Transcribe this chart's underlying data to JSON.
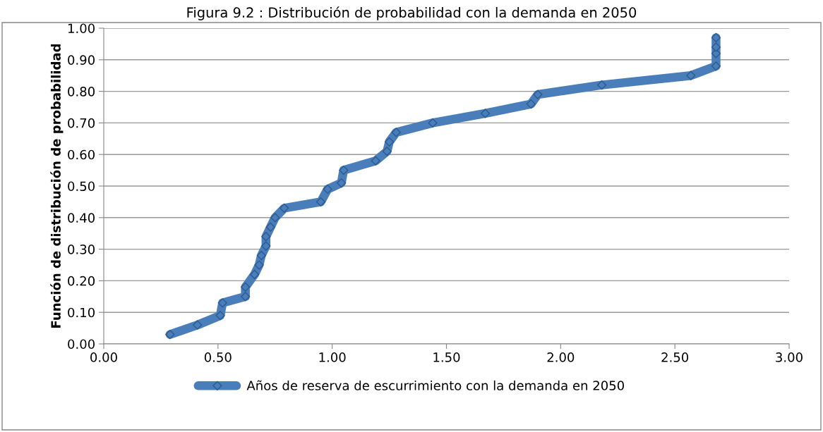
{
  "chart_data": {
    "type": "line",
    "title": "Figura 9.2 : Distribución de probabilidad con la demanda en 2050",
    "ylabel": "Función de distribución de probabilidad",
    "series": [
      {
        "name": "Años de reserva de escurrimiento con la demanda en 2050",
        "color": "#4a7ebb",
        "x": [
          0.29,
          0.41,
          0.51,
          0.52,
          0.62,
          0.62,
          0.66,
          0.68,
          0.69,
          0.71,
          0.71,
          0.73,
          0.75,
          0.79,
          0.95,
          0.98,
          1.04,
          1.05,
          1.19,
          1.24,
          1.25,
          1.28,
          1.44,
          1.67,
          1.87,
          1.9,
          2.18,
          2.57,
          2.68,
          2.68,
          2.68,
          2.68
        ],
        "values": [
          0.03,
          0.06,
          0.09,
          0.13,
          0.15,
          0.18,
          0.22,
          0.25,
          0.28,
          0.31,
          0.34,
          0.37,
          0.4,
          0.43,
          0.45,
          0.49,
          0.51,
          0.55,
          0.58,
          0.61,
          0.64,
          0.67,
          0.7,
          0.73,
          0.76,
          0.79,
          0.82,
          0.85,
          0.88,
          0.92,
          0.94,
          0.97
        ]
      }
    ],
    "xlim": [
      0,
      3
    ],
    "ylim": [
      0,
      1
    ],
    "xticks": [
      {
        "value": 0,
        "label": "0.00"
      },
      {
        "value": 0.5,
        "label": "0.50"
      },
      {
        "value": 1,
        "label": "1.00"
      },
      {
        "value": 1.5,
        "label": "1.50"
      },
      {
        "value": 2,
        "label": "2.00"
      },
      {
        "value": 2.5,
        "label": "2.50"
      },
      {
        "value": 3,
        "label": "3.00"
      }
    ],
    "yticks": [
      {
        "value": 0,
        "label": "0.00"
      },
      {
        "value": 0.1,
        "label": "0.10"
      },
      {
        "value": 0.2,
        "label": "0.20"
      },
      {
        "value": 0.3,
        "label": "0.30"
      },
      {
        "value": 0.4,
        "label": "0.40"
      },
      {
        "value": 0.5,
        "label": "0.50"
      },
      {
        "value": 0.6,
        "label": "0.60"
      },
      {
        "value": 0.7,
        "label": "0.70"
      },
      {
        "value": 0.8,
        "label": "0.80"
      },
      {
        "value": 0.9,
        "label": "0.90"
      },
      {
        "value": 1,
        "label": "1.00"
      }
    ],
    "grid": "y",
    "legend": "bottom",
    "marker": "diamond",
    "line_style": "solid"
  }
}
